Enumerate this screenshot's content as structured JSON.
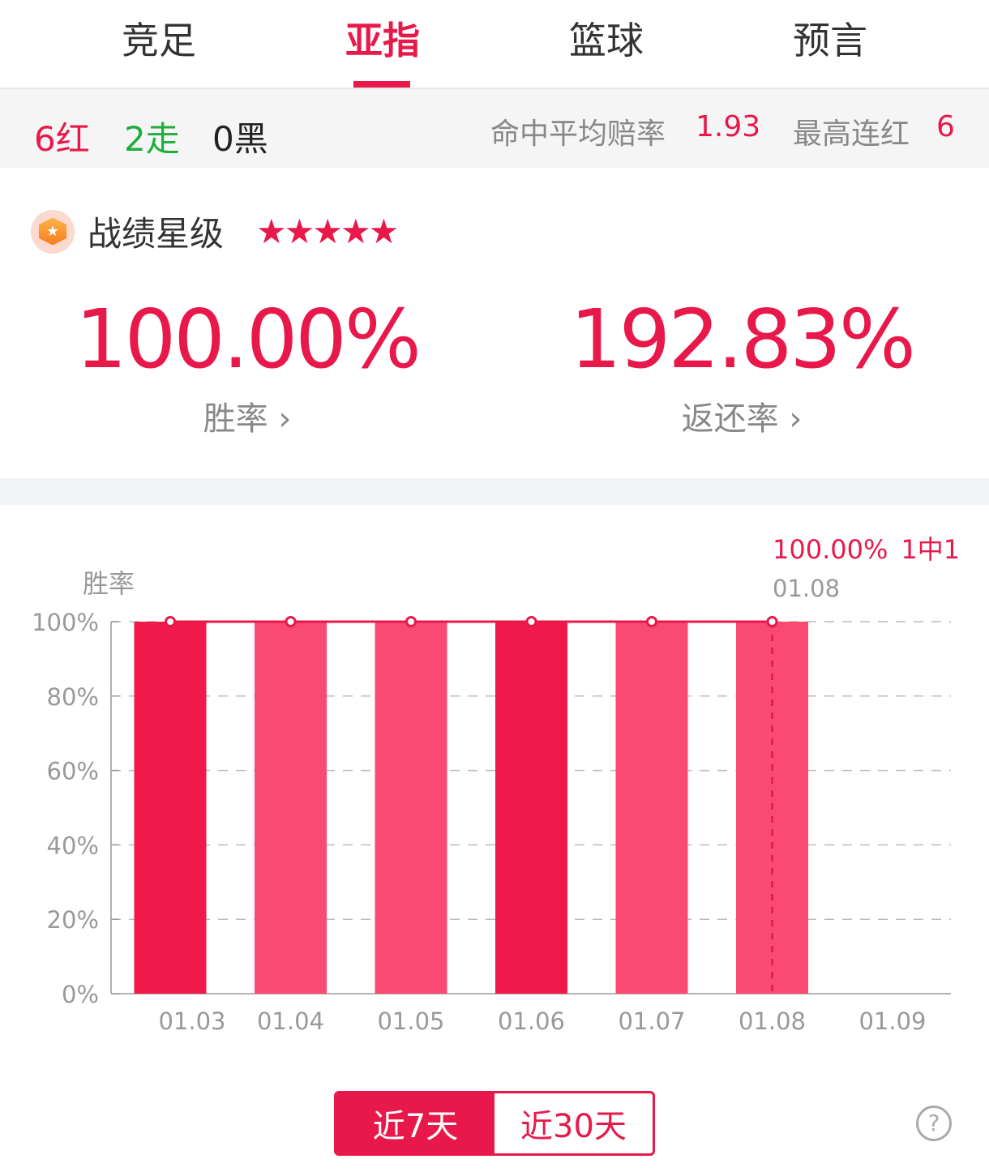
{
  "tabs": [
    "竞足",
    "亚指",
    "篮球",
    "预言"
  ],
  "active_tab": 1,
  "stats": {
    "red": "6红",
    "push": "2走",
    "black": "0黑",
    "avg_odds_label": "命中平均赔率",
    "avg_odds": "1.93",
    "max_streak_label": "最高连红",
    "max_streak": "6"
  },
  "rating": {
    "label": "战绩星级",
    "stars": 5,
    "icon": "medal-star-icon"
  },
  "win_rate": {
    "value": "100.00%",
    "label": "胜率 ›"
  },
  "return_rate": {
    "value": "192.83%",
    "label": "返还率 ›"
  },
  "chart_data": {
    "type": "bar",
    "ylabel": "胜率",
    "categories": [
      "01.03",
      "01.04",
      "01.05",
      "01.06",
      "01.07",
      "01.08",
      "01.09"
    ],
    "values": [
      100,
      100,
      100,
      100,
      100,
      100,
      null
    ],
    "bar_colors": [
      "#f0194a",
      "#fb4a72",
      "#fb4a72",
      "#f0194a",
      "#fb4a72",
      "#fb4a72"
    ],
    "line_values": [
      100,
      100,
      100,
      100,
      100,
      100,
      null
    ],
    "yticks": [
      "0%",
      "20%",
      "40%",
      "60%",
      "80%",
      "100%"
    ],
    "ylim": [
      0,
      100
    ],
    "grid": true,
    "tooltip": {
      "value": "100.00%",
      "record": "1中1",
      "date": "01.08"
    },
    "selected": "01.08"
  },
  "range": {
    "options": [
      "近7天",
      "近30天"
    ],
    "selected": 0
  },
  "help": "?"
}
